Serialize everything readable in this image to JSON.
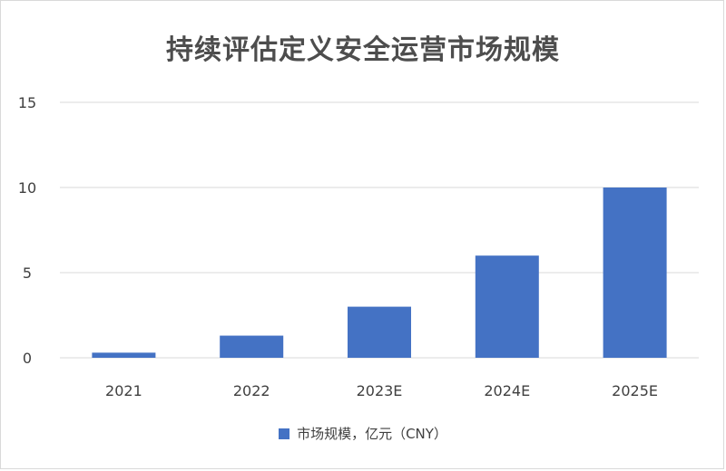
{
  "chart_data": {
    "type": "bar",
    "title": "持续评估定义安全运营市场规模",
    "categories": [
      "2021",
      "2022",
      "2023E",
      "2024E",
      "2025E"
    ],
    "series": [
      {
        "name": "市场规模，亿元（CNY）",
        "values": [
          0.3,
          1.3,
          3.0,
          6.0,
          10.0
        ]
      }
    ],
    "yticks": [
      0,
      5,
      10,
      15
    ],
    "ylim": [
      0,
      15
    ],
    "grid": true,
    "legend_position": "bottom",
    "bar_color": "#4472c4"
  }
}
